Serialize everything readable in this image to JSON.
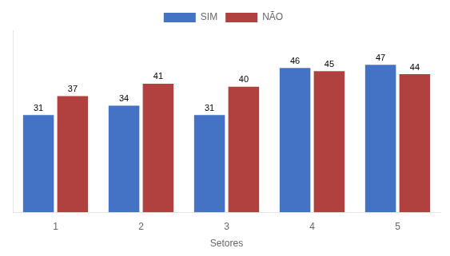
{
  "chart_data": {
    "type": "bar",
    "xlabel": "Setores",
    "categories": [
      "1",
      "2",
      "3",
      "4",
      "5"
    ],
    "series": [
      {
        "name": "SIM",
        "color": "#4472C4",
        "values": [
          31,
          34,
          31,
          46,
          47
        ]
      },
      {
        "name": "NÃO",
        "color": "#B0413E",
        "values": [
          37,
          41,
          40,
          45,
          44
        ]
      }
    ],
    "ylim": [
      0,
      58
    ],
    "grid": false,
    "legend": "top",
    "data_labels": true,
    "tick_labels": "x"
  }
}
